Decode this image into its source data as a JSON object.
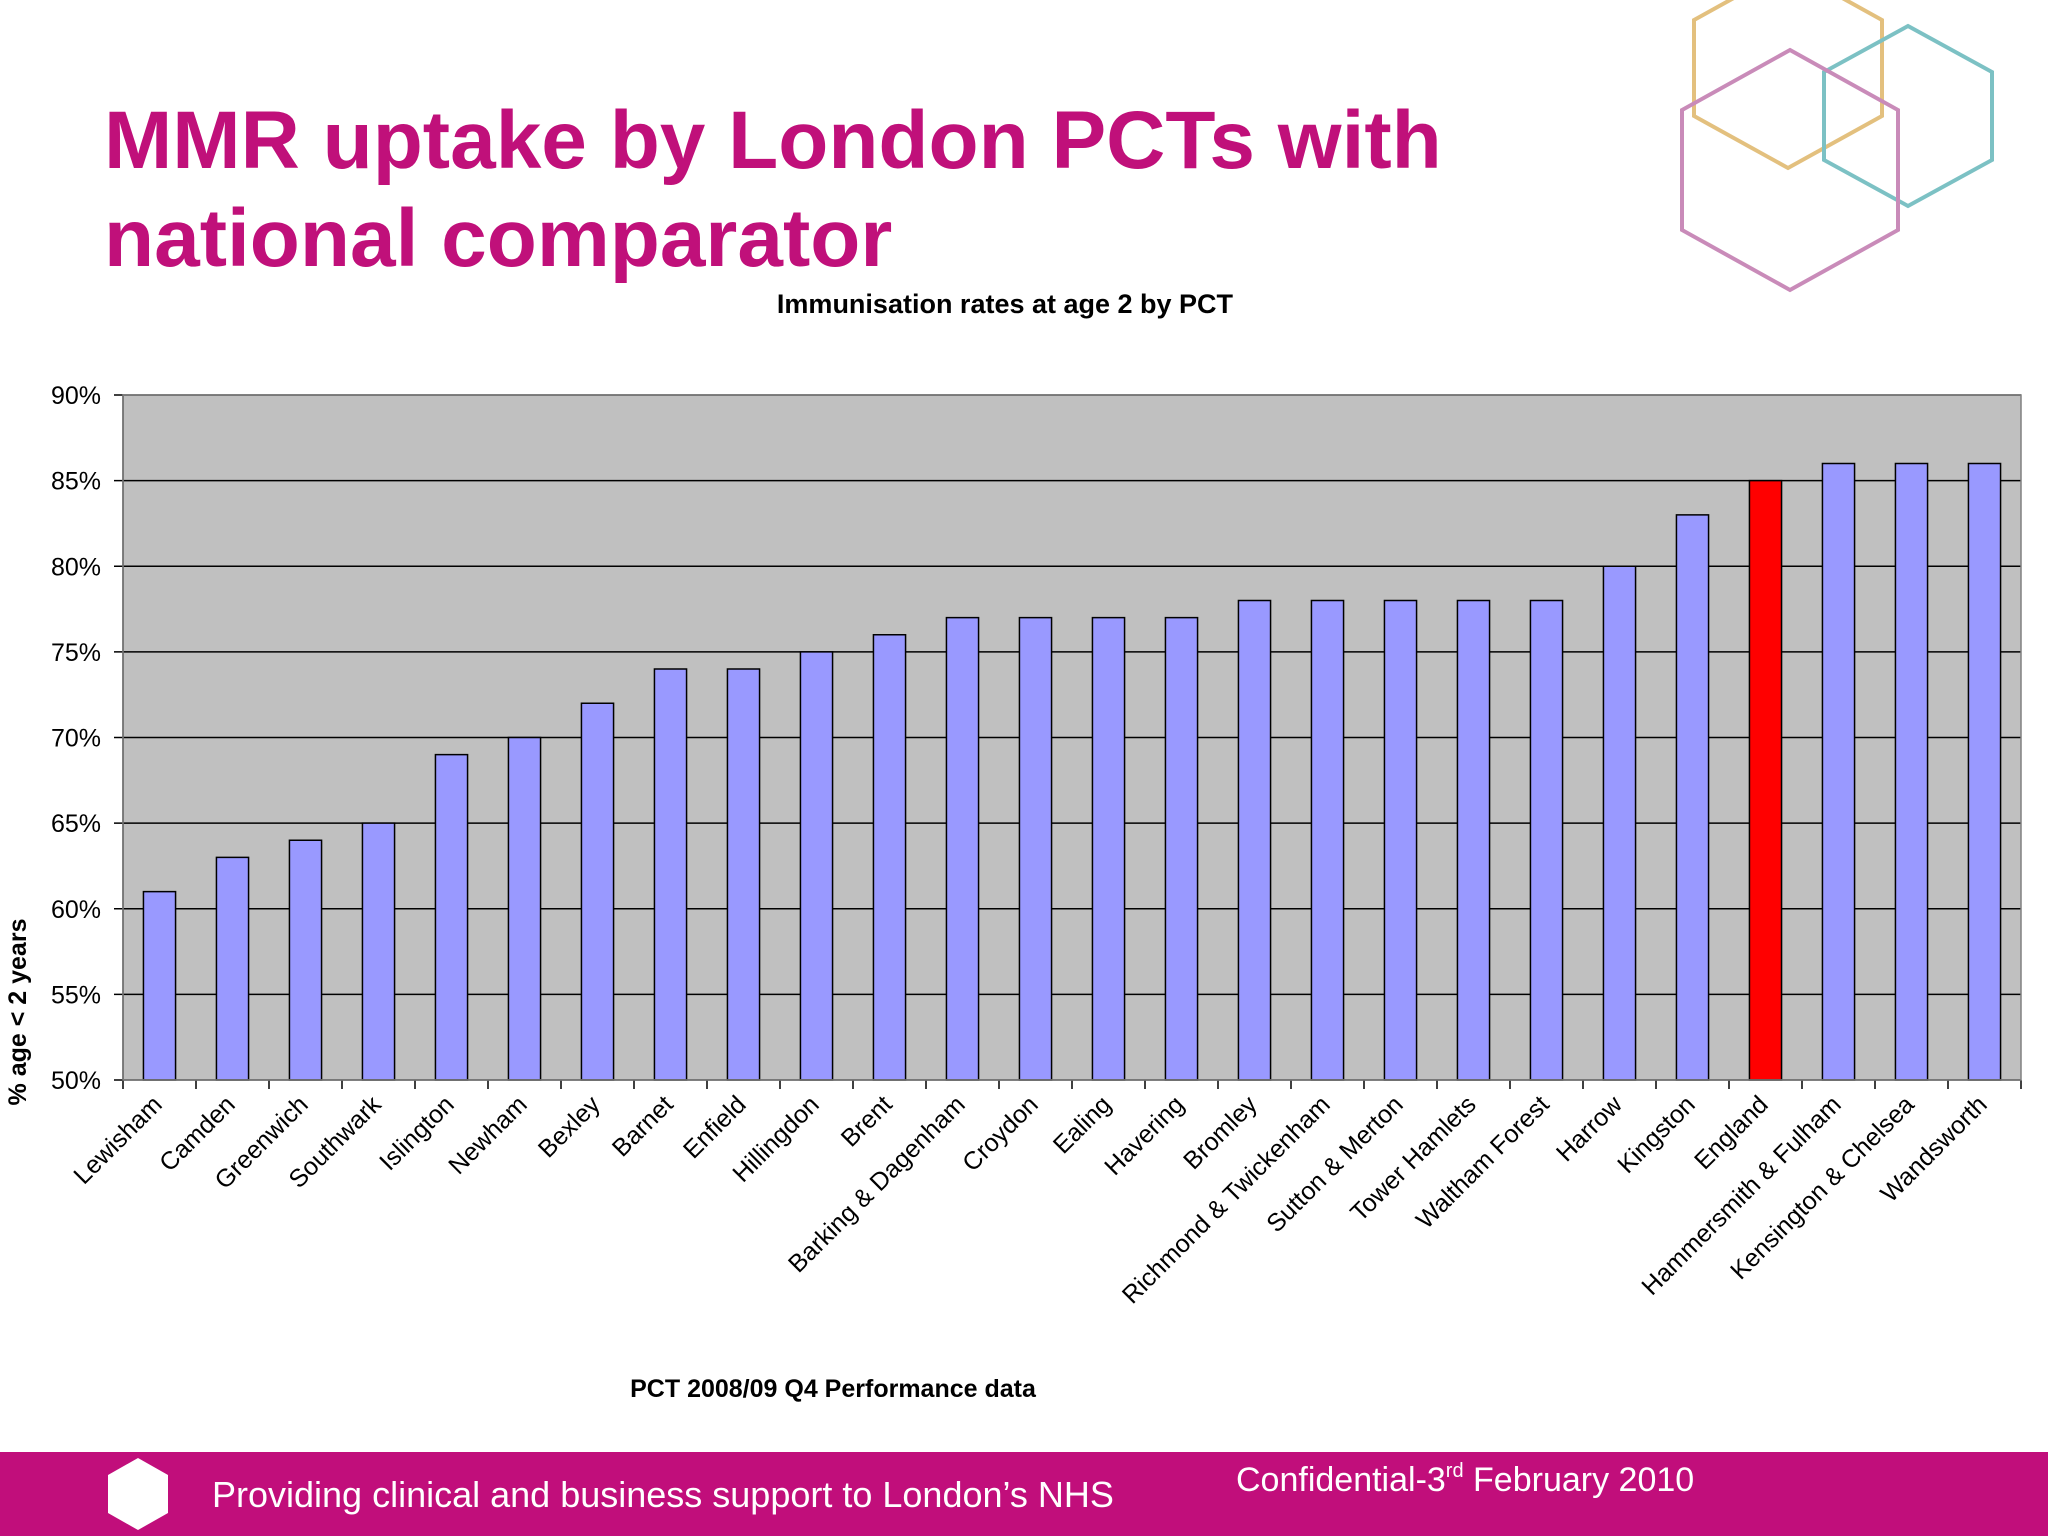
{
  "slide": {
    "title_line1": "MMR uptake by London PCTs with",
    "title_line2": "national comparator"
  },
  "colors": {
    "brand_magenta": "#c10e7b",
    "bar_default": "#9999ff",
    "bar_highlight": "#ff0000",
    "plot_background": "#c0c0c0"
  },
  "chart_data": {
    "type": "bar",
    "title": "Immunisation rates at age 2 by PCT",
    "xlabel": "PCT 2008/09 Q4 Performance data",
    "ylabel": "% age < 2 years",
    "ylim": [
      50,
      90
    ],
    "yticks": [
      "50%",
      "55%",
      "60%",
      "65%",
      "70%",
      "75%",
      "80%",
      "85%",
      "90%"
    ],
    "grid": true,
    "legend": false,
    "highlight_category": "England",
    "categories": [
      "Lewisham",
      "Camden",
      "Greenwich",
      "Southwark",
      "Islington",
      "Newham",
      "Bexley",
      "Barnet",
      "Enfield",
      "Hillingdon",
      "Brent",
      "Barking & Dagenham",
      "Croydon",
      "Ealing",
      "Havering",
      "Bromley",
      "Richmond & Twickenham",
      "Sutton & Merton",
      "Tower Hamlets",
      "Waltham Forest",
      "Harrow",
      "Kingston",
      "England",
      "Hammersmith & Fulham",
      "Kensington & Chelsea",
      "Wandsworth"
    ],
    "values": [
      61,
      63,
      64,
      65,
      69,
      70,
      72,
      74,
      74,
      75,
      76,
      77,
      77,
      77,
      77,
      78,
      78,
      78,
      78,
      78,
      80,
      83,
      85,
      86,
      86,
      86
    ]
  },
  "footer": {
    "tagline": "Providing clinical and business support to London’s NHS",
    "confidential_prefix": "Confidential-3",
    "confidential_sup": "rd",
    "confidential_suffix": " February 2010"
  }
}
